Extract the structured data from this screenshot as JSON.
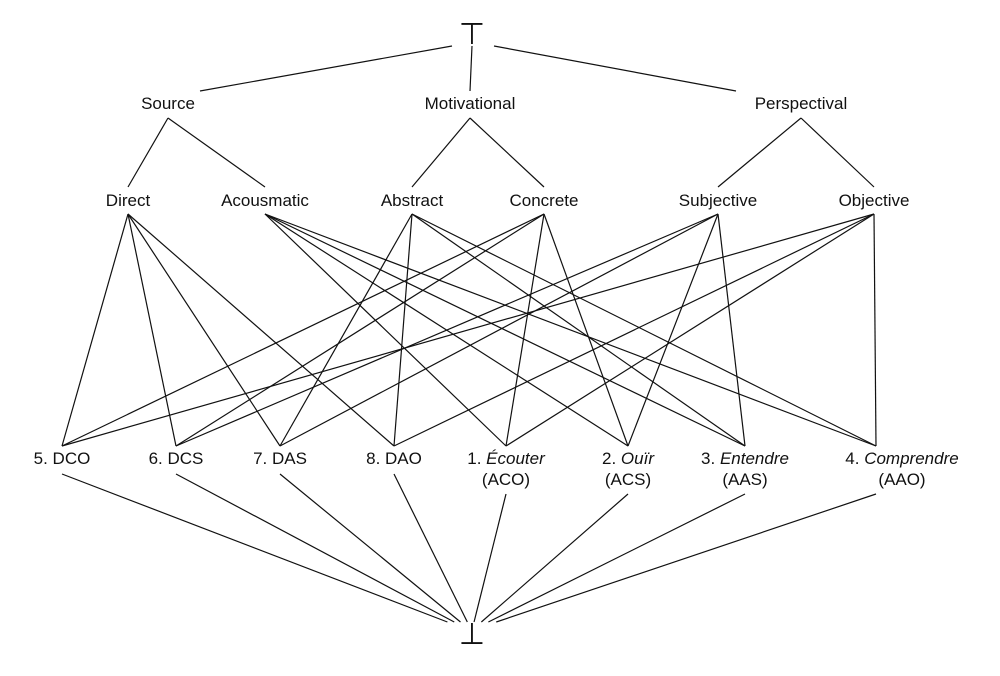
{
  "top": "⊤",
  "bottom": "⊥",
  "level1": {
    "source": "Source",
    "motivational": "Motivational",
    "perspectival": "Perspectival"
  },
  "level2": {
    "direct": "Direct",
    "acousmatic": "Acousmatic",
    "abstract": "Abstract",
    "concrete": "Concrete",
    "subjective": "Subjective",
    "objective": "Objective"
  },
  "level3": {
    "dco": {
      "label": "5. DCO"
    },
    "dcs": {
      "label": "6. DCS"
    },
    "das": {
      "label": "7. DAS"
    },
    "dao": {
      "label": "8. DAO"
    },
    "aco": {
      "num": "1.",
      "name": "Écouter",
      "code": "(ACO)"
    },
    "acs": {
      "num": "2.",
      "name": "Ouïr",
      "code": "(ACS)"
    },
    "aas": {
      "num": "3.",
      "name": "Entendre",
      "code": "(AAS)"
    },
    "aao": {
      "num": "4.",
      "name": "Comprendre",
      "code": "(AAO)"
    }
  },
  "edges": [
    [
      "top",
      "source"
    ],
    [
      "top",
      "motivational"
    ],
    [
      "top",
      "perspectival"
    ],
    [
      "source",
      "direct"
    ],
    [
      "source",
      "acousmatic"
    ],
    [
      "motivational",
      "abstract"
    ],
    [
      "motivational",
      "concrete"
    ],
    [
      "perspectival",
      "subjective"
    ],
    [
      "perspectival",
      "objective"
    ],
    [
      "direct",
      "dco"
    ],
    [
      "direct",
      "dcs"
    ],
    [
      "direct",
      "das"
    ],
    [
      "direct",
      "dao"
    ],
    [
      "acousmatic",
      "aco"
    ],
    [
      "acousmatic",
      "acs"
    ],
    [
      "acousmatic",
      "aas"
    ],
    [
      "acousmatic",
      "aao"
    ],
    [
      "concrete",
      "dco"
    ],
    [
      "concrete",
      "dcs"
    ],
    [
      "concrete",
      "aco"
    ],
    [
      "concrete",
      "acs"
    ],
    [
      "abstract",
      "das"
    ],
    [
      "abstract",
      "dao"
    ],
    [
      "abstract",
      "aas"
    ],
    [
      "abstract",
      "aao"
    ],
    [
      "subjective",
      "dcs"
    ],
    [
      "subjective",
      "das"
    ],
    [
      "subjective",
      "acs"
    ],
    [
      "subjective",
      "aas"
    ],
    [
      "objective",
      "dco"
    ],
    [
      "objective",
      "dao"
    ],
    [
      "objective",
      "aco"
    ],
    [
      "objective",
      "aao"
    ],
    [
      "dco",
      "bottom"
    ],
    [
      "dcs",
      "bottom"
    ],
    [
      "das",
      "bottom"
    ],
    [
      "dao",
      "bottom"
    ],
    [
      "aco",
      "bottom"
    ],
    [
      "acs",
      "bottom"
    ],
    [
      "aas",
      "bottom"
    ],
    [
      "aao",
      "bottom"
    ]
  ]
}
